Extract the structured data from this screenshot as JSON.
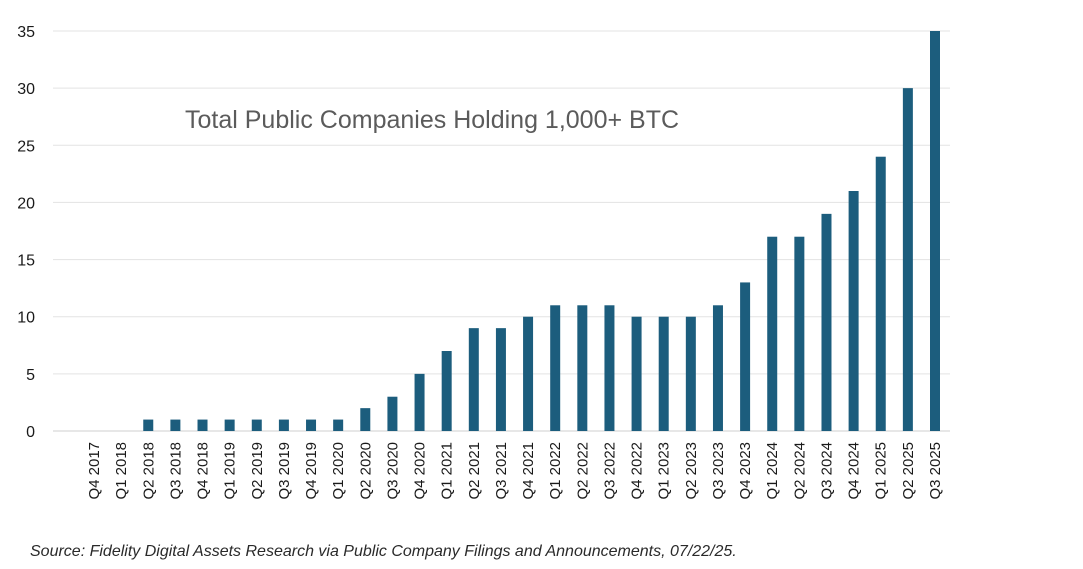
{
  "chart_data": {
    "type": "bar",
    "title": "Total Public Companies Holding 1,000+ BTC",
    "source": "Source: Fidelity Digital Assets Research via Public Company Filings and Announcements, 07/22/25.",
    "categories": [
      "Q4 2017",
      "Q1 2018",
      "Q2 2018",
      "Q3 2018",
      "Q4 2018",
      "Q1 2019",
      "Q2 2019",
      "Q3 2019",
      "Q4 2019",
      "Q1 2020",
      "Q2 2020",
      "Q3 2020",
      "Q4 2020",
      "Q1 2021",
      "Q2 2021",
      "Q3 2021",
      "Q4 2021",
      "Q1 2022",
      "Q2 2022",
      "Q3 2022",
      "Q4 2022",
      "Q1 2023",
      "Q2 2023",
      "Q3 2023",
      "Q4 2023",
      "Q1 2024",
      "Q2 2024",
      "Q3 2024",
      "Q4 2024",
      "Q1 2025",
      "Q2 2025",
      "Q3 2025"
    ],
    "values": [
      0,
      0,
      1,
      1,
      1,
      1,
      1,
      1,
      1,
      1,
      2,
      3,
      5,
      7,
      9,
      9,
      10,
      11,
      11,
      11,
      10,
      10,
      10,
      11,
      13,
      17,
      17,
      19,
      21,
      24,
      30,
      35
    ],
    "ylim": [
      0,
      35
    ],
    "yticks": [
      0,
      5,
      10,
      15,
      20,
      25,
      30,
      35
    ],
    "xlabel": "",
    "ylabel": "",
    "grid": true,
    "bar_color": "#1c5d7d",
    "grid_color": "#e3e3e3"
  }
}
